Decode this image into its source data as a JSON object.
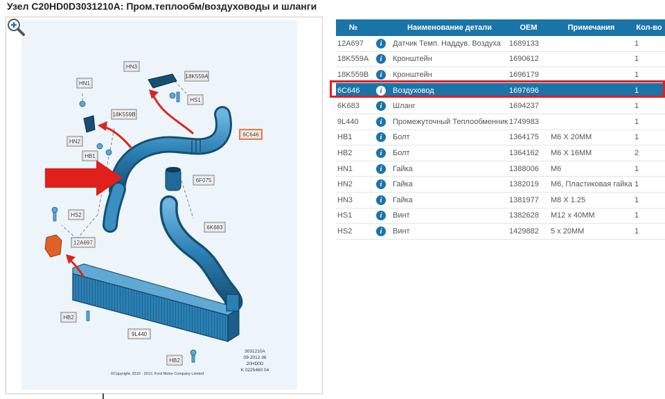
{
  "title": "Узел C20HD0D3031210A: Пром.теплообм/воздуховоды и шланги",
  "diagram": {
    "zoom_icon": "zoom-in-icon",
    "callouts": [
      "HN3",
      "18K559A",
      "HN1",
      "HS1",
      "18K559B",
      "6C646",
      "HN2",
      "HB1",
      "6F075",
      "HS2",
      "6K683",
      "12A697",
      "HB2",
      "9L440",
      "HB2"
    ],
    "footer_code": [
      "3031210A",
      "09-2012 36",
      "20HD0D",
      "K 0225460 04"
    ],
    "copyright": "©Copyright, 2010 - 2012, Ford Motor Company Limited"
  },
  "table": {
    "headers": {
      "num": "№",
      "name": "Наименование детали",
      "oem": "OEM",
      "note": "Примечания",
      "qty": "Кол-во"
    },
    "info_icon": "i",
    "rows": [
      {
        "num": "12A697",
        "name": "Датчик Темп. Наддув. Воздуха",
        "oem": "1689133",
        "note": "",
        "qty": "1"
      },
      {
        "num": "18K559A",
        "name": "Кронштейн",
        "oem": "1690612",
        "note": "",
        "qty": "1"
      },
      {
        "num": "18K559B",
        "name": "Кронштейн",
        "oem": "1696179",
        "note": "",
        "qty": "1"
      },
      {
        "num": "6C646",
        "name": "Воздуховод",
        "oem": "1697696",
        "note": "",
        "qty": "1"
      },
      {
        "num": "6K683",
        "name": "Шланг",
        "oem": "1694237",
        "note": "",
        "qty": "1"
      },
      {
        "num": "9L440",
        "name": "Промежуточный Теплообменник",
        "oem": "1749983",
        "note": "",
        "qty": "1"
      },
      {
        "num": "HB1",
        "name": "Болт",
        "oem": "1364175",
        "note": "M6 X 20MM",
        "qty": "1"
      },
      {
        "num": "HB2",
        "name": "Болт",
        "oem": "1364162",
        "note": "M6 X 16MM",
        "qty": "2"
      },
      {
        "num": "HN1",
        "name": "Гайка",
        "oem": "1388006",
        "note": "M6",
        "qty": "1"
      },
      {
        "num": "HN2",
        "name": "Гайка",
        "oem": "1382019",
        "note": "M6, Пластиковая гайка",
        "qty": "1"
      },
      {
        "num": "HN3",
        "name": "Гайка",
        "oem": "1381977",
        "note": "M8 X 1.25",
        "qty": "1"
      },
      {
        "num": "HS1",
        "name": "Винт",
        "oem": "1382628",
        "note": "M12 x 40MM",
        "qty": "1"
      },
      {
        "num": "HS2",
        "name": "Винт",
        "oem": "1429882",
        "note": "5 x 20MM",
        "qty": "1"
      }
    ],
    "selected_num": "6C646"
  },
  "colors": {
    "header_blue": "#1a74a8",
    "highlight_red": "#e01e24",
    "part_blue": "#2a7fb3"
  }
}
